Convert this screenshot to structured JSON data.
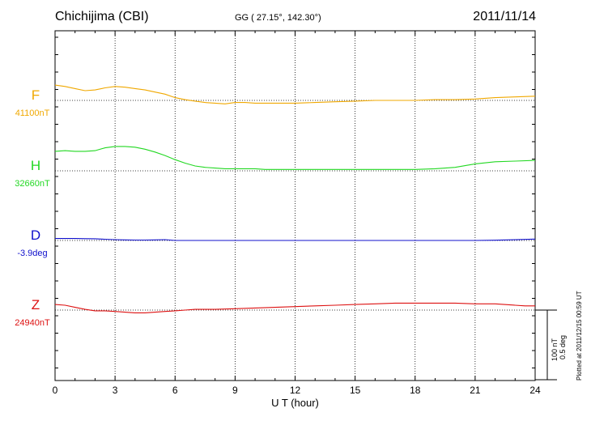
{
  "header": {
    "station": "Chichijima (CBI)",
    "coords": "GG ( 27.15°, 142.30°)",
    "date": "2011/11/14"
  },
  "footer": {
    "plotted": "Plotted at 2011/12/15 00:59 UT",
    "scale_nt": "100 nT",
    "scale_deg": "0.5 deg"
  },
  "chart_data": {
    "type": "line",
    "xlabel": "U T (hour)",
    "xlim": [
      0,
      24
    ],
    "xticks": [
      0,
      3,
      6,
      9,
      12,
      15,
      18,
      21,
      24
    ],
    "grid": true,
    "series": [
      {
        "name": "F",
        "baseline_label": "41100nT",
        "color": "#f0a800",
        "baseline": 41100,
        "x": [
          0,
          0.5,
          1,
          1.5,
          2,
          2.5,
          3,
          3.5,
          4,
          4.5,
          5,
          5.5,
          6,
          6.5,
          7,
          7.5,
          8,
          8.5,
          9,
          9.5,
          10,
          10.5,
          11,
          12,
          13,
          14,
          15,
          16,
          17,
          18,
          19,
          20,
          21,
          22,
          23,
          24
        ],
        "y": [
          41122,
          41120,
          41117,
          41114,
          41115,
          41118,
          41120,
          41119,
          41117,
          41115,
          41112,
          41109,
          41104,
          41101,
          41099,
          41097,
          41096,
          41095,
          41097,
          41097,
          41096,
          41096,
          41096,
          41096,
          41097,
          41098,
          41099,
          41100,
          41100,
          41100,
          41101,
          41101,
          41102,
          41104,
          41105,
          41106
        ]
      },
      {
        "name": "H",
        "baseline_label": "32660nT",
        "color": "#22d822",
        "baseline": 32660,
        "x": [
          0,
          0.5,
          1,
          1.5,
          2,
          2.5,
          3,
          3.5,
          4,
          4.5,
          5,
          5.5,
          6,
          6.5,
          7,
          7.5,
          8,
          8.5,
          9,
          9.5,
          10,
          10.5,
          11,
          12,
          13,
          14,
          15,
          16,
          17,
          18,
          19,
          20,
          21,
          22,
          23,
          24
        ],
        "y": [
          32688,
          32689,
          32688,
          32688,
          32689,
          32693,
          32695,
          32695,
          32694,
          32691,
          32687,
          32682,
          32676,
          32671,
          32667,
          32665,
          32664,
          32663,
          32663,
          32663,
          32663,
          32662,
          32662,
          32662,
          32662,
          32662,
          32662,
          32662,
          32662,
          32662,
          32663,
          32665,
          32670,
          32673,
          32674,
          32675
        ]
      },
      {
        "name": "D",
        "baseline_label": "-3.9deg",
        "color": "#1010cc",
        "baseline": -3.9,
        "x": [
          0,
          0.5,
          1,
          1.5,
          2,
          2.5,
          3,
          3.5,
          4,
          4.5,
          5,
          5.5,
          6,
          7,
          8,
          9,
          10,
          11,
          12,
          13,
          14,
          15,
          16,
          17,
          18,
          19,
          20,
          21,
          22,
          23,
          24
        ],
        "y": [
          -3.886,
          -3.886,
          -3.886,
          -3.887,
          -3.888,
          -3.891,
          -3.894,
          -3.896,
          -3.897,
          -3.897,
          -3.896,
          -3.894,
          -3.9,
          -3.9,
          -3.9,
          -3.9,
          -3.9,
          -3.9,
          -3.9,
          -3.9,
          -3.9,
          -3.9,
          -3.9,
          -3.9,
          -3.9,
          -3.9,
          -3.9,
          -3.9,
          -3.898,
          -3.895,
          -3.89
        ]
      },
      {
        "name": "Z",
        "baseline_label": "24940nT",
        "color": "#dd1111",
        "baseline": 24940,
        "x": [
          0,
          0.5,
          1,
          1.5,
          2,
          2.5,
          3,
          3.5,
          4,
          4.5,
          5,
          5.5,
          6,
          6.5,
          7,
          8,
          9,
          10,
          11,
          12,
          13,
          14,
          15,
          16,
          17,
          18,
          19,
          20,
          21,
          22,
          23,
          23.5,
          24
        ],
        "y": [
          24948,
          24947,
          24944,
          24941,
          24939,
          24939,
          24938,
          24937,
          24936,
          24936,
          24937,
          24938,
          24939,
          24940,
          24941,
          24941,
          24942,
          24943,
          24944,
          24945,
          24946,
          24947,
          24948,
          24949,
          24950,
          24950,
          24950,
          24950,
          24949,
          24949,
          24947,
          24946,
          24946
        ]
      }
    ],
    "scale_bar": "100 nT / 0.5 deg"
  }
}
